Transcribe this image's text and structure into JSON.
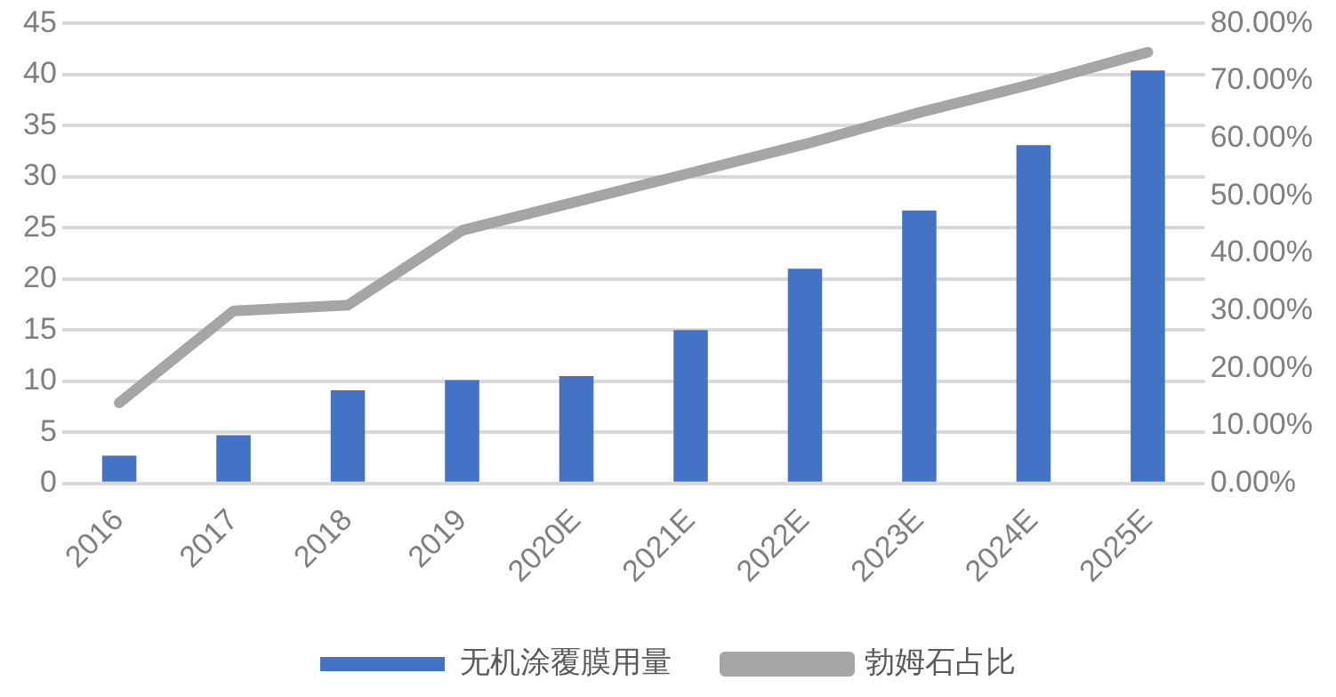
{
  "chart_data": {
    "type": "bar",
    "categories": [
      "2016",
      "2017",
      "2018",
      "2019",
      "2020E",
      "2021E",
      "2022E",
      "2023E",
      "2024E",
      "2025E"
    ],
    "series": [
      {
        "name": "无机涂覆膜用量",
        "color": "#4472c4",
        "values": [
          2.7,
          4.7,
          9.1,
          10.1,
          10.5,
          15,
          21,
          26.7,
          33.1,
          40.4
        ]
      },
      {
        "name": "勃姆石占比",
        "type": "line",
        "axis": "y2",
        "color": "#a5a5a5",
        "marker": "none",
        "values": [
          14,
          30,
          31,
          44,
          49,
          54,
          59,
          64.5,
          69.5,
          75
        ]
      }
    ],
    "ylim": [
      0,
      45
    ],
    "yticks": [
      0,
      5,
      10,
      15,
      20,
      25,
      30,
      35,
      40,
      45
    ],
    "y2lim": [
      0,
      80
    ],
    "y2ticks": [
      {
        "value": 0,
        "label": "0.00%"
      },
      {
        "value": 10,
        "label": "10.00%"
      },
      {
        "value": 20,
        "label": "20.00%"
      },
      {
        "value": 30,
        "label": "30.00%"
      },
      {
        "value": 40,
        "label": "40.00%"
      },
      {
        "value": 50,
        "label": "50.00%"
      },
      {
        "value": 60,
        "label": "60.00%"
      },
      {
        "value": 70,
        "label": "70.00%"
      },
      {
        "value": 80,
        "label": "80.00%"
      }
    ],
    "grid": "y",
    "legend": "bottom"
  }
}
